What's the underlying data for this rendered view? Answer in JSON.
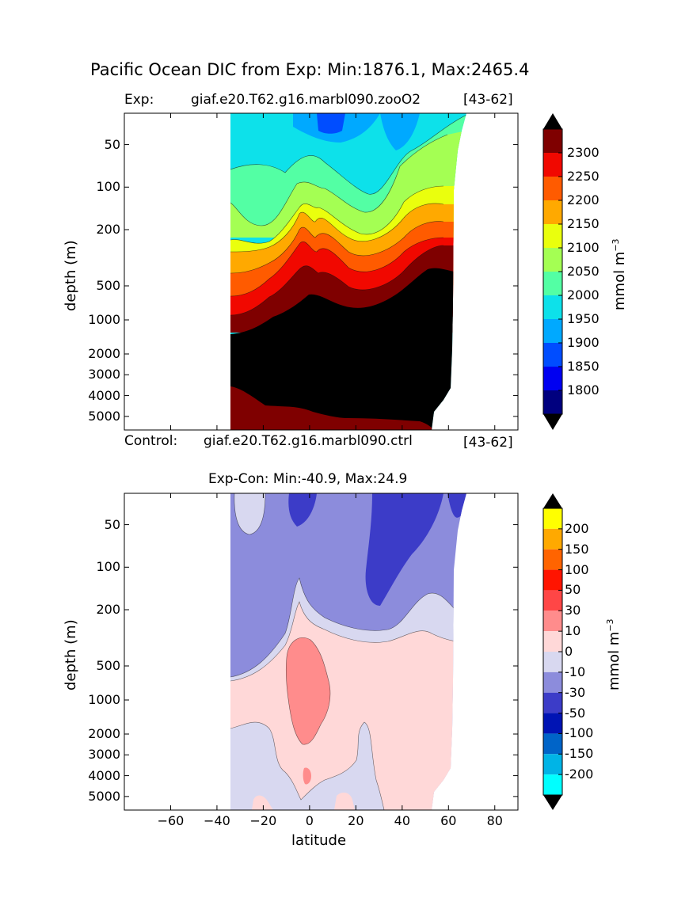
{
  "chart_data": [
    {
      "type": "heatmap",
      "title": "Pacific Ocean DIC from Exp: Min:1876.1, Max:2465.4",
      "subtitle_left": "Exp:",
      "subtitle_center": "giaf.e20.T62.g16.marbl090.zooO2",
      "subtitle_right": "[43-62]",
      "ylabel": "depth (m)",
      "ytick_labels": [
        "50",
        "100",
        "200",
        "500",
        "1000",
        "2000",
        "3000",
        "4000",
        "5000"
      ],
      "xlim": [
        -80,
        90
      ],
      "colorbar": {
        "label": "mmol m",
        "label_exponent": "−3",
        "levels": [
          1750,
          1800,
          1850,
          1900,
          1950,
          2000,
          2050,
          2100,
          2150,
          2200,
          2250,
          2300,
          2350
        ],
        "tick_labels": [
          "1800",
          "1850",
          "1900",
          "1950",
          "2000",
          "2050",
          "2100",
          "2150",
          "2200",
          "2250",
          "2300"
        ],
        "colors": [
          "#00007f",
          "#0000f1",
          "#004dff",
          "#00a9ff",
          "#0de1ea",
          "#53ffa4",
          "#a4ff53",
          "#eaff0d",
          "#ffa900",
          "#ff5b00",
          "#f10800",
          "#7f0000"
        ],
        "over_color": "#000000",
        "under_color": "#000000"
      }
    },
    {
      "type": "heatmap",
      "title": "Exp-Con: Min:-40.9, Max:24.9",
      "subtitle_left": "Control:",
      "subtitle_center": "giaf.e20.T62.g16.marbl090.ctrl",
      "subtitle_right": "[43-62]",
      "xlabel": "latitude",
      "ylabel": "depth (m)",
      "ytick_labels": [
        "50",
        "100",
        "200",
        "500",
        "1000",
        "2000",
        "3000",
        "4000",
        "5000"
      ],
      "xtick_labels": [
        "−60",
        "−40",
        "−20",
        "0",
        "20",
        "40",
        "60",
        "80"
      ],
      "xticks": [
        -60,
        -40,
        -20,
        0,
        20,
        40,
        60,
        80
      ],
      "xlim": [
        -80,
        90
      ],
      "colorbar": {
        "label": "mmol m",
        "label_exponent": "−3",
        "tick_labels": [
          "200",
          "150",
          "100",
          "50",
          "30",
          "10",
          "0",
          "-10",
          "-30",
          "-50",
          "-100",
          "-150",
          "-200"
        ],
        "colors": [
          "#ffff00",
          "#ffa900",
          "#ff6400",
          "#ff1400",
          "#ff4646",
          "#ff8c8c",
          "#ffd8d8",
          "#d8d8f0",
          "#8c8cdc",
          "#3c3cc8",
          "#0014b4",
          "#0064c8",
          "#00b4e6",
          "#00ffff"
        ],
        "over_color": "#000000",
        "under_color": "#000000"
      }
    }
  ]
}
